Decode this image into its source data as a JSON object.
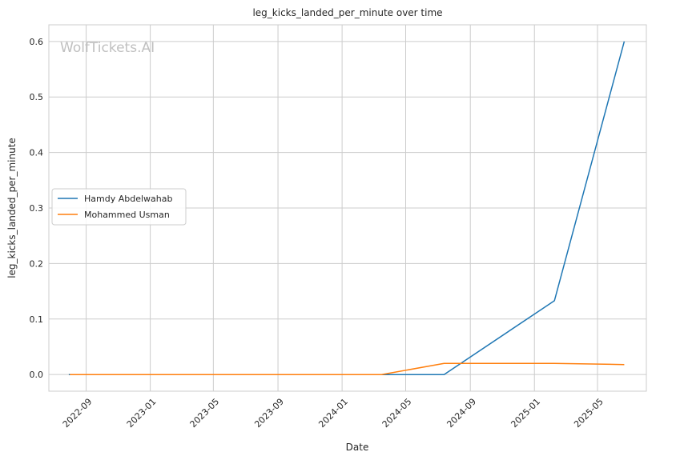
{
  "chart_data": {
    "type": "line",
    "title": "leg_kicks_landed_per_minute over time",
    "xlabel": "Date",
    "ylabel": "leg_kicks_landed_per_minute",
    "watermark": "WolfTickets.AI",
    "x_tick_labels": [
      "2022-09",
      "2023-01",
      "2023-05",
      "2023-09",
      "2024-01",
      "2024-05",
      "2024-09",
      "2025-01",
      "2025-05"
    ],
    "y_tick_labels": [
      "0.0",
      "0.1",
      "0.2",
      "0.3",
      "0.4",
      "0.5",
      "0.6"
    ],
    "ylim": [
      -0.03,
      0.63
    ],
    "xlim": [
      "2022-06-22",
      "2025-08-02"
    ],
    "grid": true,
    "legend_position": "center-left",
    "series": [
      {
        "name": "Hamdy Abdelwahab",
        "color": "#1f77b4",
        "points": [
          {
            "x": "2022-07-30",
            "y": 0.0
          },
          {
            "x": "2024-07-13",
            "y": 0.0
          },
          {
            "x": "2025-02-08",
            "y": 0.133
          },
          {
            "x": "2025-06-21",
            "y": 0.6
          }
        ]
      },
      {
        "name": "Mohammed Usman",
        "color": "#ff7f0e",
        "points": [
          {
            "x": "2022-08-01",
            "y": 0.0
          },
          {
            "x": "2024-03-16",
            "y": 0.0
          },
          {
            "x": "2024-07-13",
            "y": 0.02
          },
          {
            "x": "2025-02-08",
            "y": 0.02
          },
          {
            "x": "2025-06-21",
            "y": 0.018
          }
        ]
      }
    ]
  }
}
